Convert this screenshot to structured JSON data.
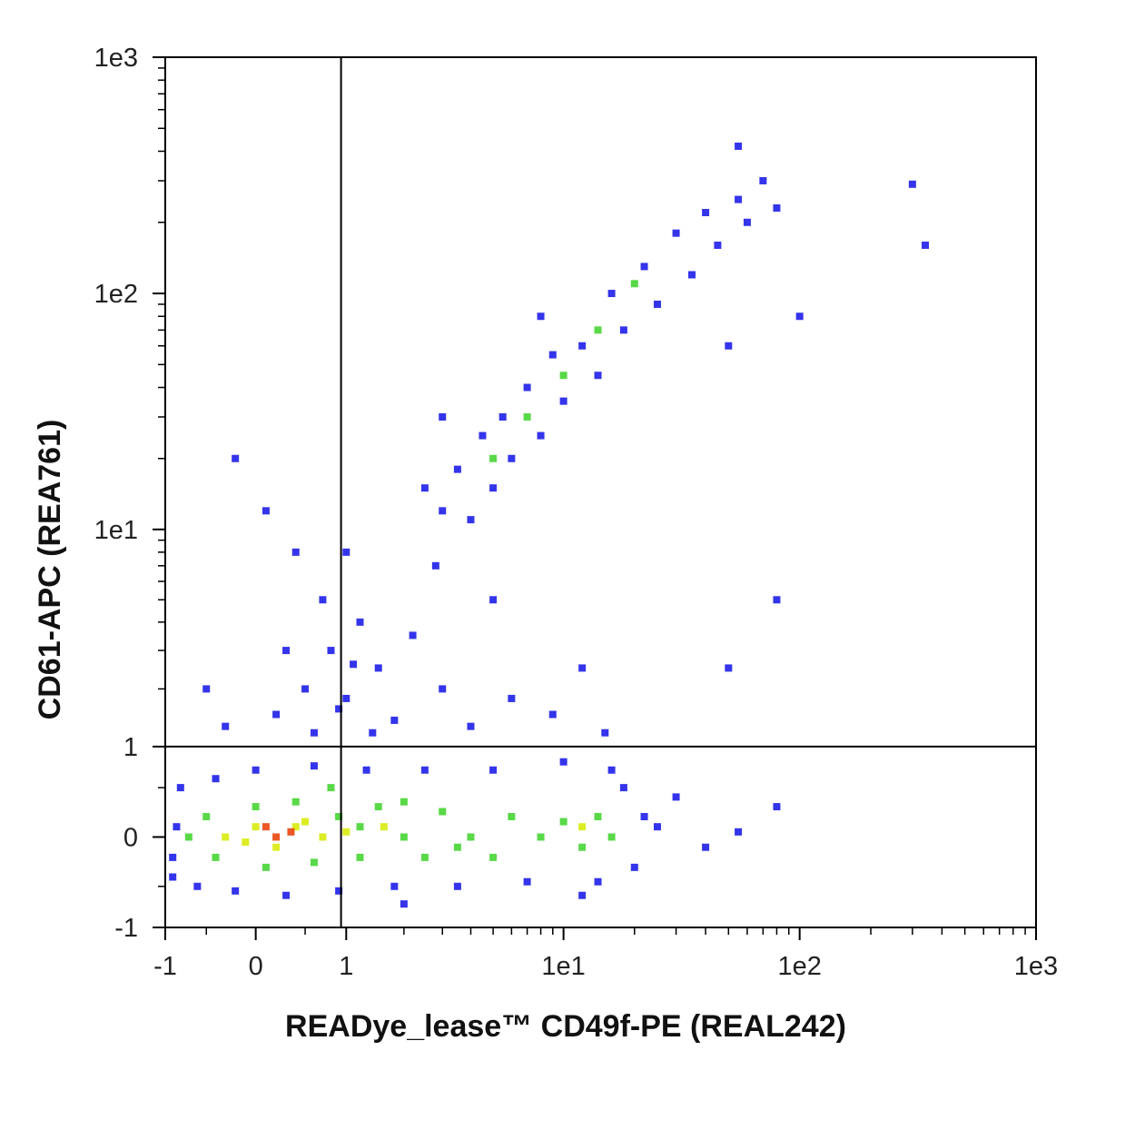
{
  "chart_data": {
    "type": "scatter",
    "xlabel": "READye_lease™ CD49f-PE (REAL242)",
    "ylabel": "CD61-APC (REA761)",
    "scale": "asinh",
    "xlim": [
      -1,
      1000
    ],
    "ylim": [
      -1,
      1000
    ],
    "xticks": [
      -1,
      0,
      1,
      {
        "value": 10,
        "label": "1e1"
      },
      {
        "value": 100,
        "label": "1e2"
      },
      {
        "value": 1000,
        "label": "1e3"
      }
    ],
    "yticks": [
      -1,
      0,
      1,
      {
        "value": 10,
        "label": "1e1"
      },
      {
        "value": 100,
        "label": "1e2"
      },
      {
        "value": 1000,
        "label": "1e3"
      }
    ],
    "x_minor_ticks": [
      -0.5,
      0.5,
      2,
      3,
      4,
      5,
      6,
      7,
      8,
      9,
      20,
      30,
      40,
      50,
      60,
      70,
      80,
      90,
      200,
      300,
      400,
      500,
      600,
      700,
      800,
      900
    ],
    "y_minor_ticks": [
      -0.5,
      0.5,
      2,
      3,
      4,
      5,
      6,
      7,
      8,
      9,
      20,
      30,
      40,
      50,
      60,
      70,
      80,
      90,
      200,
      300,
      400,
      500,
      600,
      700,
      800,
      900
    ],
    "gate_x": 0.93,
    "gate_y": 1,
    "series": [
      {
        "color": "#1010e8",
        "x": [
          -0.9,
          -0.8,
          -0.6,
          -0.4,
          -0.2,
          0,
          0.3,
          0.6,
          0.9,
          1.3,
          1.8,
          2.5,
          3.5,
          5,
          7,
          10,
          14,
          18,
          22,
          20,
          25,
          30,
          40,
          55,
          80,
          -0.85,
          -0.9,
          16,
          12,
          2,
          0.2,
          0.5,
          0.8,
          1.0,
          1.2,
          1.5,
          0.7,
          0.3,
          1.8,
          2.2,
          1.0,
          0.4,
          -0.3,
          -0.5,
          3,
          4,
          6,
          9,
          15,
          12,
          5,
          2.8,
          0.1,
          -0.2,
          0.6,
          1.4,
          0.9,
          1.1,
          3,
          3.5,
          4,
          4.5,
          5,
          5.5,
          6,
          7,
          8,
          9,
          10,
          12,
          14,
          16,
          18,
          22,
          25,
          30,
          35,
          40,
          45,
          55,
          60,
          70,
          80,
          55,
          3,
          2.5,
          8,
          50,
          300,
          340,
          100,
          80,
          50
        ],
        "values": [
          -0.4,
          0.5,
          -0.5,
          0.6,
          -0.55,
          0.7,
          -0.6,
          0.75,
          -0.55,
          0.7,
          -0.5,
          0.7,
          -0.5,
          0.7,
          -0.45,
          0.8,
          -0.45,
          0.5,
          0.2,
          -0.3,
          0.1,
          0.4,
          -0.1,
          0.05,
          0.3,
          0.1,
          -0.2,
          0.7,
          -0.6,
          -0.7,
          1.5,
          2,
          3,
          1.8,
          4,
          2.5,
          5,
          3,
          1.4,
          3.5,
          8,
          8,
          1.3,
          2,
          2,
          1.3,
          1.8,
          1.5,
          1.2,
          2.5,
          5,
          7,
          12,
          20,
          1.2,
          1.2,
          1.6,
          2.6,
          12,
          18,
          11,
          25,
          15,
          30,
          20,
          40,
          25,
          55,
          35,
          60,
          45,
          100,
          70,
          130,
          90,
          180,
          120,
          220,
          160,
          250,
          200,
          300,
          230,
          420,
          30,
          15,
          80,
          60,
          290,
          160,
          80,
          5,
          2.5
        ]
      },
      {
        "color": "#3cd228",
        "x": [
          -0.7,
          -0.5,
          -0.4,
          0,
          0.1,
          0.4,
          0.6,
          0.9,
          1.2,
          1.5,
          2,
          2.5,
          3,
          4,
          5,
          6,
          8,
          10,
          12,
          14,
          16,
          0.8,
          5,
          7,
          10,
          14,
          20,
          1.2,
          2,
          3.5
        ],
        "values": [
          0,
          0.2,
          -0.2,
          0.3,
          -0.3,
          0.35,
          -0.25,
          0.2,
          -0.2,
          0.3,
          0,
          -0.2,
          0.25,
          0,
          -0.2,
          0.2,
          0,
          0.15,
          -0.1,
          0.2,
          0,
          0.5,
          20,
          30,
          45,
          70,
          110,
          0.1,
          0.35,
          -0.1
        ]
      },
      {
        "color": "#d6ea00",
        "x": [
          -0.3,
          0,
          0.2,
          0.4,
          0.7,
          1,
          1.6,
          12,
          -0.1,
          0.5
        ],
        "values": [
          0,
          0.1,
          -0.1,
          0.1,
          0,
          0.05,
          0.1,
          0.1,
          -0.05,
          0.15
        ]
      },
      {
        "color": "#e83a00",
        "x": [
          0.1,
          0.2,
          0.35
        ],
        "values": [
          0.1,
          0,
          0.05
        ]
      }
    ]
  }
}
